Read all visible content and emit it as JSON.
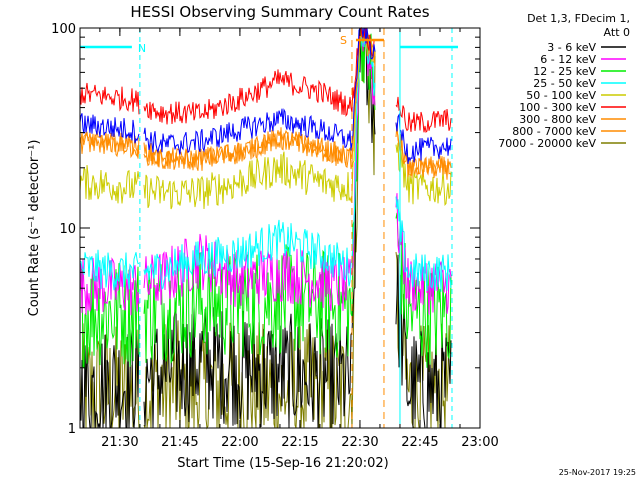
{
  "chart_data": {
    "type": "line",
    "title": "HESSI Observing Summary Count Rates",
    "xlabel": "Start Time (15-Sep-16 21:20:02)",
    "ylabel": "Count Rate (s⁻¹ detector⁻¹)",
    "yscale": "log",
    "ylim": [
      1,
      100
    ],
    "xlim": [
      "21:20:02",
      "23:00"
    ],
    "x_ticks": [
      "21:30",
      "21:45",
      "22:00",
      "22:15",
      "22:30",
      "22:45",
      "23:00"
    ],
    "y_ticks": [
      "1",
      "10",
      "100"
    ],
    "grid": false,
    "legend_header": [
      "Det 1,3, FDecim 1,",
      "Att 0"
    ],
    "legend_position": "top-right",
    "timestamp": "25-Nov-2017 19:25",
    "gaps": [
      {
        "start": "21:35",
        "end": "21:36"
      },
      {
        "start": "22:34",
        "end": "22:39"
      },
      {
        "start": "22:53",
        "end": "23:00"
      }
    ],
    "annotations": [
      {
        "label": "N",
        "color": "#00ffff",
        "start": "21:20:02",
        "end": "21:33",
        "marker": "21:35"
      },
      {
        "label": "S",
        "color": "#ff8c00",
        "start": "22:29",
        "end": "22:36",
        "marker_start": "22:28",
        "marker_end": "22:36"
      }
    ],
    "time_knots": [
      "21:20",
      "21:33",
      "21:40",
      "21:50",
      "22:00",
      "22:10",
      "22:20",
      "22:28",
      "22:30",
      "22:31",
      "22:42",
      "22:53"
    ],
    "series": [
      {
        "name": "3 - 6 keV",
        "color": "#000000",
        "noise": 0.3,
        "values": [
          1.6,
          1.7,
          1.9,
          2.2,
          2.0,
          1.9,
          1.8,
          1.7,
          100,
          100,
          1.6,
          1.6
        ]
      },
      {
        "name": "6 - 12 keV",
        "color": "#ff00ff",
        "noise": 0.15,
        "values": [
          5.2,
          5.0,
          5.5,
          7.0,
          5.5,
          6.0,
          5.5,
          5.0,
          100,
          100,
          5.2,
          5.2
        ]
      },
      {
        "name": "12 - 25 keV",
        "color": "#00ee00",
        "noise": 0.28,
        "values": [
          3.8,
          3.8,
          4.0,
          4.2,
          4.2,
          4.4,
          4.2,
          4.0,
          100,
          100,
          3.8,
          3.8
        ]
      },
      {
        "name": "25 - 50 keV",
        "color": "#00ffff",
        "noise": 0.1,
        "values": [
          6.3,
          6.0,
          6.2,
          7.0,
          7.5,
          8.8,
          7.5,
          6.3,
          100,
          100,
          6.0,
          6.0
        ]
      },
      {
        "name": "50 - 100 keV",
        "color": "#cccc00",
        "noise": 0.09,
        "values": [
          17,
          16,
          15,
          15,
          17,
          20,
          17,
          16,
          100,
          100,
          16,
          16
        ]
      },
      {
        "name": "100 - 300 keV",
        "color": "#ff0000",
        "noise": 0.06,
        "values": [
          47,
          44,
          38,
          37,
          44,
          55,
          48,
          40,
          100,
          100,
          33,
          35
        ]
      },
      {
        "name": "300 - 800 keV",
        "color": "#ff8c00",
        "noise": 0.06,
        "values": [
          27,
          26,
          22,
          22,
          24,
          28,
          25,
          22,
          100,
          100,
          20,
          20
        ]
      },
      {
        "name": "800 - 7000 keV",
        "color": "#ff8c00",
        "noise": 0.05,
        "values": [
          27,
          26,
          22,
          22,
          24,
          28,
          25,
          22,
          100,
          100,
          20,
          20
        ]
      },
      {
        "name": "7000 - 20000 keV",
        "color": "#7f7f00",
        "noise": 0.35,
        "values": [
          1.5,
          1.5,
          1.6,
          1.5,
          1.6,
          1.5,
          1.5,
          1.5,
          100,
          100,
          1.5,
          1.5
        ]
      }
    ],
    "blue_band": {
      "color": "#0000ff",
      "noise": 0.06,
      "values": [
        33,
        31,
        26,
        27,
        31,
        35,
        31,
        27,
        100,
        100,
        24,
        26
      ]
    }
  }
}
